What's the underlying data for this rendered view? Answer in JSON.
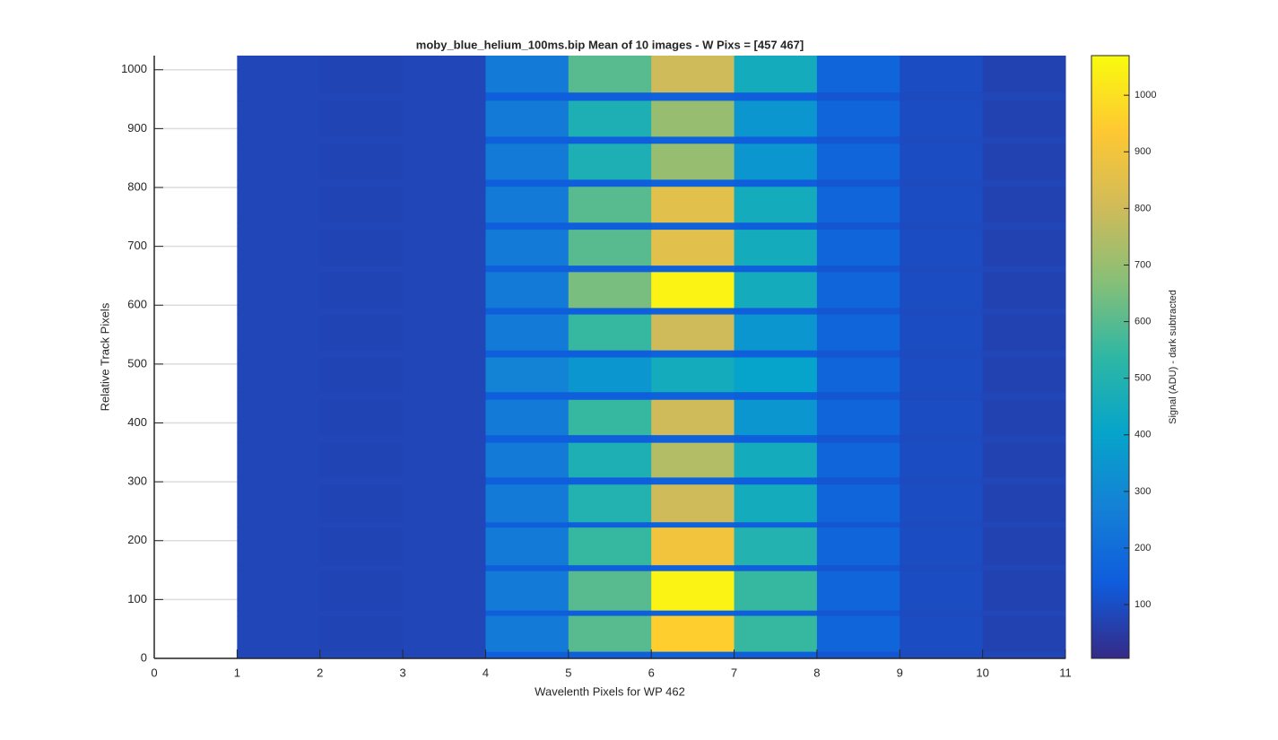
{
  "chart_data": {
    "type": "heatmap",
    "title": "moby_blue_helium_100ms.bip  Mean of 10 images - W Pixs = [457  467]",
    "x_label": "Wavelenth Pixels for WP 462",
    "y_label": "Relative Track Pixels",
    "colorbar_label": "Signal (ADU) - dark subtracted",
    "xlim": [
      0,
      11
    ],
    "xticks": [
      0,
      1,
      2,
      3,
      4,
      5,
      6,
      7,
      8,
      9,
      10,
      11
    ],
    "ylim": [
      0,
      1024
    ],
    "yticks": [
      0,
      100,
      200,
      300,
      400,
      500,
      600,
      700,
      800,
      900,
      1000
    ],
    "grid": true,
    "clim": [
      5,
      1070
    ],
    "cticks": [
      100,
      200,
      300,
      400,
      500,
      600,
      700,
      800,
      900,
      1000
    ],
    "x_edges": [
      1,
      2,
      3,
      4,
      5,
      6,
      7,
      8,
      9,
      10,
      11
    ],
    "y_edges": [
      0,
      12,
      73,
      82,
      149,
      159,
      223,
      232,
      296,
      308,
      367,
      380,
      440,
      453,
      512,
      524,
      585,
      596,
      657,
      668,
      729,
      741,
      802,
      814,
      875,
      887,
      948,
      962,
      1024
    ],
    "values": [
      [
        80,
        80,
        80,
        150,
        150,
        160,
        150,
        120,
        90,
        80
      ],
      [
        80,
        75,
        80,
        250,
        600,
        950,
        550,
        170,
        95,
        70
      ],
      [
        80,
        80,
        80,
        150,
        150,
        160,
        150,
        120,
        90,
        80
      ],
      [
        80,
        75,
        80,
        250,
        600,
        1050,
        550,
        170,
        95,
        70
      ],
      [
        80,
        80,
        80,
        150,
        150,
        160,
        150,
        120,
        90,
        80
      ],
      [
        80,
        75,
        80,
        250,
        550,
        900,
        500,
        170,
        95,
        70
      ],
      [
        80,
        80,
        80,
        150,
        150,
        160,
        150,
        120,
        90,
        80
      ],
      [
        80,
        75,
        80,
        250,
        500,
        800,
        450,
        170,
        95,
        70
      ],
      [
        80,
        80,
        80,
        150,
        150,
        160,
        150,
        120,
        90,
        80
      ],
      [
        80,
        75,
        80,
        250,
        480,
        750,
        450,
        170,
        95,
        70
      ],
      [
        80,
        80,
        80,
        150,
        150,
        160,
        150,
        120,
        90,
        80
      ],
      [
        80,
        75,
        80,
        250,
        550,
        800,
        350,
        170,
        95,
        70
      ],
      [
        80,
        80,
        80,
        150,
        150,
        160,
        150,
        120,
        90,
        80
      ],
      [
        80,
        75,
        80,
        280,
        350,
        450,
        400,
        170,
        95,
        70
      ],
      [
        80,
        80,
        80,
        150,
        150,
        160,
        150,
        120,
        90,
        80
      ],
      [
        80,
        75,
        80,
        250,
        550,
        800,
        350,
        170,
        95,
        70
      ],
      [
        80,
        80,
        80,
        150,
        150,
        160,
        150,
        120,
        90,
        80
      ],
      [
        80,
        75,
        80,
        250,
        650,
        1050,
        450,
        170,
        95,
        70
      ],
      [
        80,
        80,
        80,
        150,
        150,
        160,
        150,
        120,
        90,
        80
      ],
      [
        80,
        75,
        80,
        250,
        600,
        850,
        450,
        170,
        95,
        70
      ],
      [
        80,
        80,
        80,
        150,
        150,
        160,
        150,
        120,
        90,
        80
      ],
      [
        80,
        75,
        80,
        250,
        600,
        850,
        450,
        170,
        95,
        70
      ],
      [
        80,
        80,
        80,
        150,
        150,
        160,
        150,
        120,
        90,
        80
      ],
      [
        80,
        75,
        80,
        250,
        480,
        700,
        350,
        170,
        95,
        70
      ],
      [
        80,
        80,
        80,
        150,
        150,
        160,
        150,
        120,
        90,
        80
      ],
      [
        80,
        75,
        80,
        250,
        480,
        700,
        350,
        170,
        95,
        70
      ],
      [
        80,
        80,
        80,
        150,
        150,
        160,
        150,
        120,
        90,
        80
      ],
      [
        80,
        75,
        80,
        250,
        600,
        800,
        450,
        170,
        95,
        70
      ]
    ]
  }
}
